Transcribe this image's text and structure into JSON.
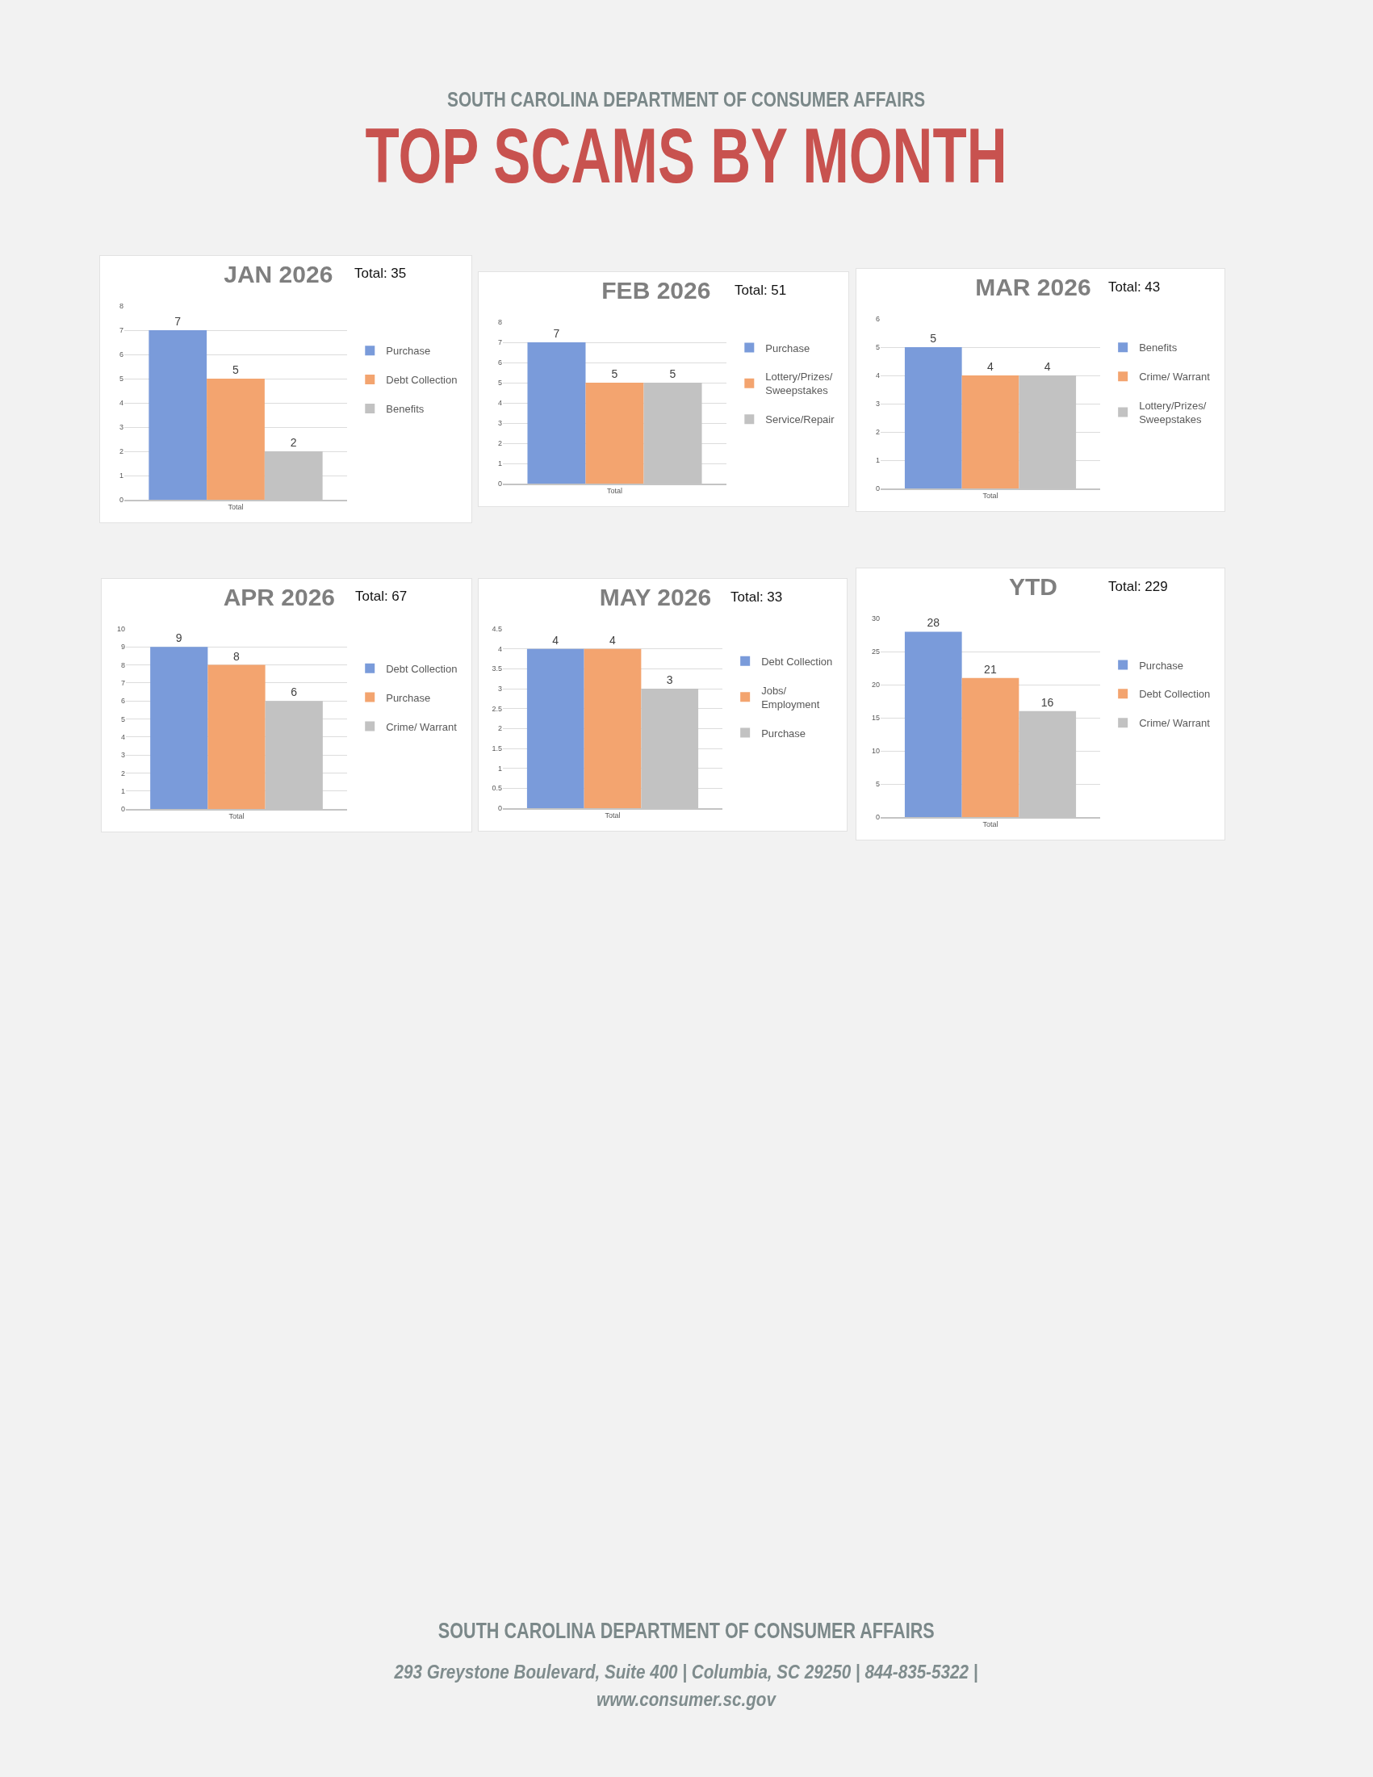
{
  "chart_data": [
    {
      "type": "other",
      "subtitle": "SOUTH CAROLINA DEPARTMENT OF CONSUMER AFFAIRS",
      "title": "TOP SCAMS BY MONTH"
    },
    {
      "type": "bar",
      "title": "JAN 2026",
      "annotations": [
        "Total: 35"
      ],
      "categories": [
        "Total"
      ],
      "series": [
        {
          "name": "Purchase",
          "color": "#7a9bda",
          "values": [
            7
          ]
        },
        {
          "name": "Debt Collection",
          "color": "#f3a46f",
          "values": [
            5
          ]
        },
        {
          "name": "Benefits",
          "color": "#c2c2c2",
          "values": [
            2
          ]
        }
      ],
      "ylim": [
        0,
        8
      ],
      "yticks": [
        0,
        1,
        2,
        3,
        4,
        5,
        6,
        7,
        8
      ],
      "grid": "y",
      "legend": "right",
      "data_labels": true
    },
    {
      "type": "bar",
      "title": "FEB 2026",
      "annotations": [
        "Total: 51"
      ],
      "categories": [
        "Total"
      ],
      "series": [
        {
          "name": "Purchase",
          "color": "#7a9bda",
          "values": [
            7
          ]
        },
        {
          "name": "Lottery/Prizes/ Sweepstakes",
          "color": "#f3a46f",
          "values": [
            5
          ]
        },
        {
          "name": "Service/Repair",
          "color": "#c2c2c2",
          "values": [
            5
          ]
        }
      ],
      "ylim": [
        0,
        8
      ],
      "yticks": [
        0,
        1,
        2,
        3,
        4,
        5,
        6,
        7,
        8
      ],
      "grid": "y",
      "legend": "right",
      "data_labels": true
    },
    {
      "type": "bar",
      "title": "MAR 2026",
      "annotations": [
        "Total: 43"
      ],
      "categories": [
        "Total"
      ],
      "series": [
        {
          "name": "Benefits",
          "color": "#7a9bda",
          "values": [
            5
          ]
        },
        {
          "name": "Crime/ Warrant",
          "color": "#f3a46f",
          "values": [
            4
          ]
        },
        {
          "name": "Lottery/Prizes/ Sweepstakes",
          "color": "#c2c2c2",
          "values": [
            4
          ]
        }
      ],
      "ylim": [
        0,
        6
      ],
      "yticks": [
        0,
        1,
        2,
        3,
        4,
        5,
        6
      ],
      "grid": "y",
      "legend": "right",
      "data_labels": true
    },
    {
      "type": "bar",
      "title": "APR 2026",
      "annotations": [
        "Total: 67"
      ],
      "categories": [
        "Total"
      ],
      "series": [
        {
          "name": "Debt Collection",
          "color": "#7a9bda",
          "values": [
            9
          ]
        },
        {
          "name": "Purchase",
          "color": "#f3a46f",
          "values": [
            8
          ]
        },
        {
          "name": "Crime/ Warrant",
          "color": "#c2c2c2",
          "values": [
            6
          ]
        }
      ],
      "ylim": [
        0,
        10
      ],
      "yticks": [
        0,
        1,
        2,
        3,
        4,
        5,
        6,
        7,
        8,
        9,
        10
      ],
      "grid": "y",
      "legend": "right",
      "data_labels": true
    },
    {
      "type": "bar",
      "title": "MAY 2026",
      "annotations": [
        "Total: 33"
      ],
      "categories": [
        "Total"
      ],
      "series": [
        {
          "name": "Debt Collection",
          "color": "#7a9bda",
          "values": [
            4
          ]
        },
        {
          "name": "Jobs/ Employment",
          "color": "#f3a46f",
          "values": [
            4
          ]
        },
        {
          "name": "Purchase",
          "color": "#c2c2c2",
          "values": [
            3
          ]
        }
      ],
      "ylim": [
        0,
        4.5
      ],
      "yticks": [
        0,
        0.5,
        1,
        1.5,
        2,
        2.5,
        3,
        3.5,
        4,
        4.5
      ],
      "grid": "y",
      "legend": "right",
      "data_labels": true
    },
    {
      "type": "bar",
      "title": "YTD",
      "annotations": [
        "Total: 229"
      ],
      "categories": [
        "Total"
      ],
      "series": [
        {
          "name": "Purchase",
          "color": "#7a9bda",
          "values": [
            28
          ]
        },
        {
          "name": "Debt Collection",
          "color": "#f3a46f",
          "values": [
            21
          ]
        },
        {
          "name": "Crime/ Warrant",
          "color": "#c2c2c2",
          "values": [
            16
          ]
        }
      ],
      "ylim": [
        0,
        30
      ],
      "yticks": [
        0,
        5,
        10,
        15,
        20,
        25,
        30
      ],
      "grid": "y",
      "legend": "right",
      "data_labels": true
    },
    {
      "type": "other",
      "title": "SOUTH CAROLINA DEPARTMENT OF CONSUMER AFFAIRS",
      "annotations": [
        "293 Greystone Boulevard, Suite 400 | Columbia, SC 29250 | 844-835-5322 | www.consumer.sc.gov"
      ]
    }
  ]
}
